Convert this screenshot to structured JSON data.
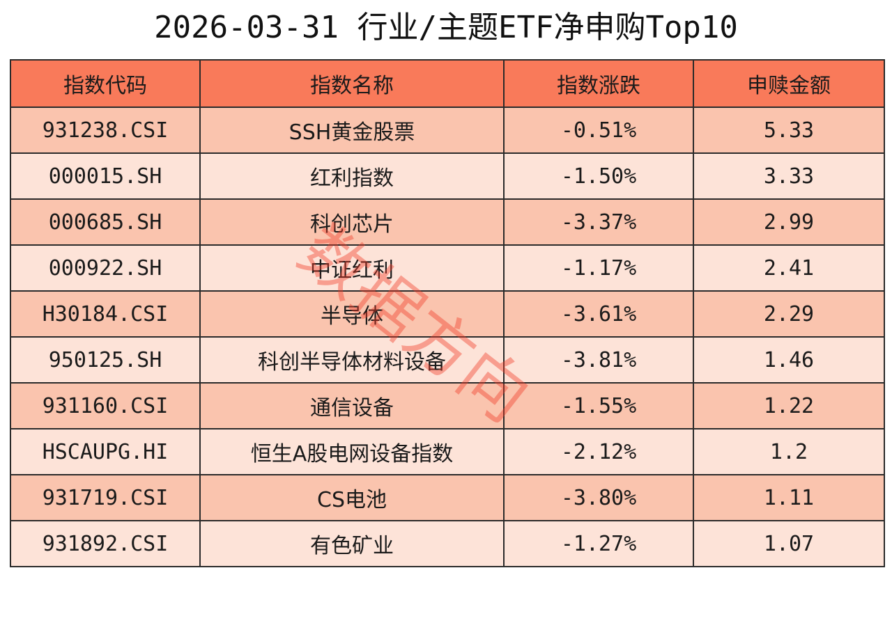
{
  "title": "2026-03-31 行业/主题ETF净申购Top10",
  "watermark": "数据方向",
  "colors": {
    "header_bg": "#f97a5a",
    "row_odd_bg": "#fac4ae",
    "row_even_bg": "#fde3d8",
    "watermark": "#f03c28"
  },
  "headers": [
    "指数代码",
    "指数名称",
    "指数涨跌",
    "申赎金额"
  ],
  "rows": [
    {
      "code": "931238.CSI",
      "name": "SSH黄金股票",
      "change": "-0.51%",
      "amount": "5.33"
    },
    {
      "code": "000015.SH",
      "name": "红利指数",
      "change": "-1.50%",
      "amount": "3.33"
    },
    {
      "code": "000685.SH",
      "name": "科创芯片",
      "change": "-3.37%",
      "amount": "2.99"
    },
    {
      "code": "000922.SH",
      "name": "中证红利",
      "change": "-1.17%",
      "amount": "2.41"
    },
    {
      "code": "H30184.CSI",
      "name": "半导体",
      "change": "-3.61%",
      "amount": "2.29"
    },
    {
      "code": "950125.SH",
      "name": "科创半导体材料设备",
      "change": "-3.81%",
      "amount": "1.46"
    },
    {
      "code": "931160.CSI",
      "name": "通信设备",
      "change": "-1.55%",
      "amount": "1.22"
    },
    {
      "code": "HSCAUPG.HI",
      "name": "恒生A股电网设备指数",
      "change": "-2.12%",
      "amount": "1.2"
    },
    {
      "code": "931719.CSI",
      "name": "CS电池",
      "change": "-3.80%",
      "amount": "1.11"
    },
    {
      "code": "931892.CSI",
      "name": "有色矿业",
      "change": "-1.27%",
      "amount": "1.07"
    }
  ]
}
